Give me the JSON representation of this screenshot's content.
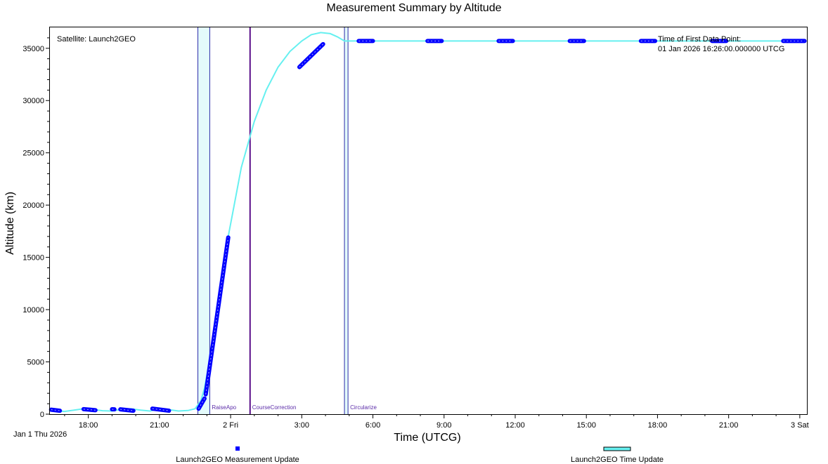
{
  "title": "Measurement Summary by Altitude",
  "chart_data": {
    "type": "line",
    "title": "Measurement Summary by Altitude",
    "xlabel": "Time (UTCG)",
    "ylabel": "Altitude (km)",
    "x_units": "hours since 01 Jan 2026 00:00 UTCG",
    "xlim": [
      16.38,
      48.3
    ],
    "ylim": [
      0,
      37000
    ],
    "y_ticks": [
      0,
      5000,
      10000,
      15000,
      20000,
      25000,
      30000,
      35000
    ],
    "x_ticks": [
      {
        "x": 18,
        "label": "18:00"
      },
      {
        "x": 21,
        "label": "21:00"
      },
      {
        "x": 24,
        "label": "2 Fri"
      },
      {
        "x": 27,
        "label": "3:00"
      },
      {
        "x": 30,
        "label": "6:00"
      },
      {
        "x": 33,
        "label": "9:00"
      },
      {
        "x": 36,
        "label": "12:00"
      },
      {
        "x": 39,
        "label": "15:00"
      },
      {
        "x": 42,
        "label": "18:00"
      },
      {
        "x": 45,
        "label": "21:00"
      },
      {
        "x": 48,
        "label": "3 Sat"
      }
    ],
    "date_label": "Jan 1 Thu 2026",
    "series": [
      {
        "name": "Launch2GEO Time Update",
        "color": "#66f0f0",
        "points": [
          [
            16.43,
            420
          ],
          [
            16.7,
            320
          ],
          [
            17.0,
            260
          ],
          [
            17.4,
            380
          ],
          [
            17.8,
            520
          ],
          [
            18.2,
            440
          ],
          [
            18.6,
            330
          ],
          [
            19.0,
            300
          ],
          [
            19.4,
            450
          ],
          [
            19.8,
            510
          ],
          [
            20.2,
            390
          ],
          [
            20.6,
            300
          ],
          [
            21.0,
            520
          ],
          [
            21.4,
            430
          ],
          [
            21.8,
            300
          ],
          [
            22.2,
            350
          ],
          [
            22.5,
            520
          ],
          [
            22.75,
            1300
          ],
          [
            22.9,
            2500
          ],
          [
            23.3,
            7500
          ],
          [
            23.65,
            13000
          ],
          [
            23.9,
            17000
          ],
          [
            24.1,
            19400
          ],
          [
            24.45,
            23600
          ],
          [
            25.0,
            28000
          ],
          [
            25.5,
            31000
          ],
          [
            26.0,
            33200
          ],
          [
            26.5,
            34700
          ],
          [
            27.0,
            35700
          ],
          [
            27.4,
            36300
          ],
          [
            27.8,
            36500
          ],
          [
            28.2,
            36400
          ],
          [
            28.5,
            36100
          ],
          [
            28.8,
            35700
          ],
          [
            29.5,
            35700
          ],
          [
            48.2,
            35700
          ]
        ]
      },
      {
        "name": "Launch2GEO Measurement Update",
        "color": "#0000ff",
        "segments": [
          [
            [
              16.43,
              430
            ],
            [
              16.8,
              330
            ]
          ],
          [
            [
              17.8,
              480
            ],
            [
              18.3,
              380
            ]
          ],
          [
            [
              19.0,
              470
            ],
            [
              19.1,
              460
            ]
          ],
          [
            [
              19.35,
              460
            ],
            [
              19.9,
              330
            ]
          ],
          [
            [
              20.7,
              530
            ],
            [
              21.4,
              330
            ]
          ],
          [
            [
              22.65,
              520
            ],
            [
              22.9,
              1500
            ]
          ],
          [
            [
              22.95,
              1900
            ],
            [
              23.9,
              16900
            ]
          ],
          [
            [
              26.9,
              33200
            ],
            [
              27.9,
              35400
            ]
          ],
          [
            [
              29.4,
              35700
            ],
            [
              30.0,
              35700
            ]
          ],
          [
            [
              32.3,
              35700
            ],
            [
              32.9,
              35700
            ]
          ],
          [
            [
              35.3,
              35700
            ],
            [
              35.9,
              35700
            ]
          ],
          [
            [
              38.3,
              35700
            ],
            [
              38.9,
              35700
            ]
          ],
          [
            [
              41.3,
              35700
            ],
            [
              41.9,
              35700
            ]
          ],
          [
            [
              44.3,
              35700
            ],
            [
              44.9,
              35700
            ]
          ],
          [
            [
              47.3,
              35700
            ],
            [
              48.2,
              35700
            ]
          ]
        ]
      }
    ],
    "events": [
      {
        "label": "RaiseApo",
        "start": 22.62,
        "end": 23.12
      },
      {
        "label": "CourseCorrection",
        "start": 24.82,
        "end": 24.82
      },
      {
        "label": "Circularize",
        "start": 28.8,
        "end": 28.95
      }
    ],
    "annotations": {
      "satellite": "Satellite: Launch2GEO",
      "first_point_label": "Time of First Data Point:",
      "first_point_value": "01 Jan 2026 16:26:00.000000 UTCG"
    },
    "legend_position": "bottom",
    "grid": false
  }
}
